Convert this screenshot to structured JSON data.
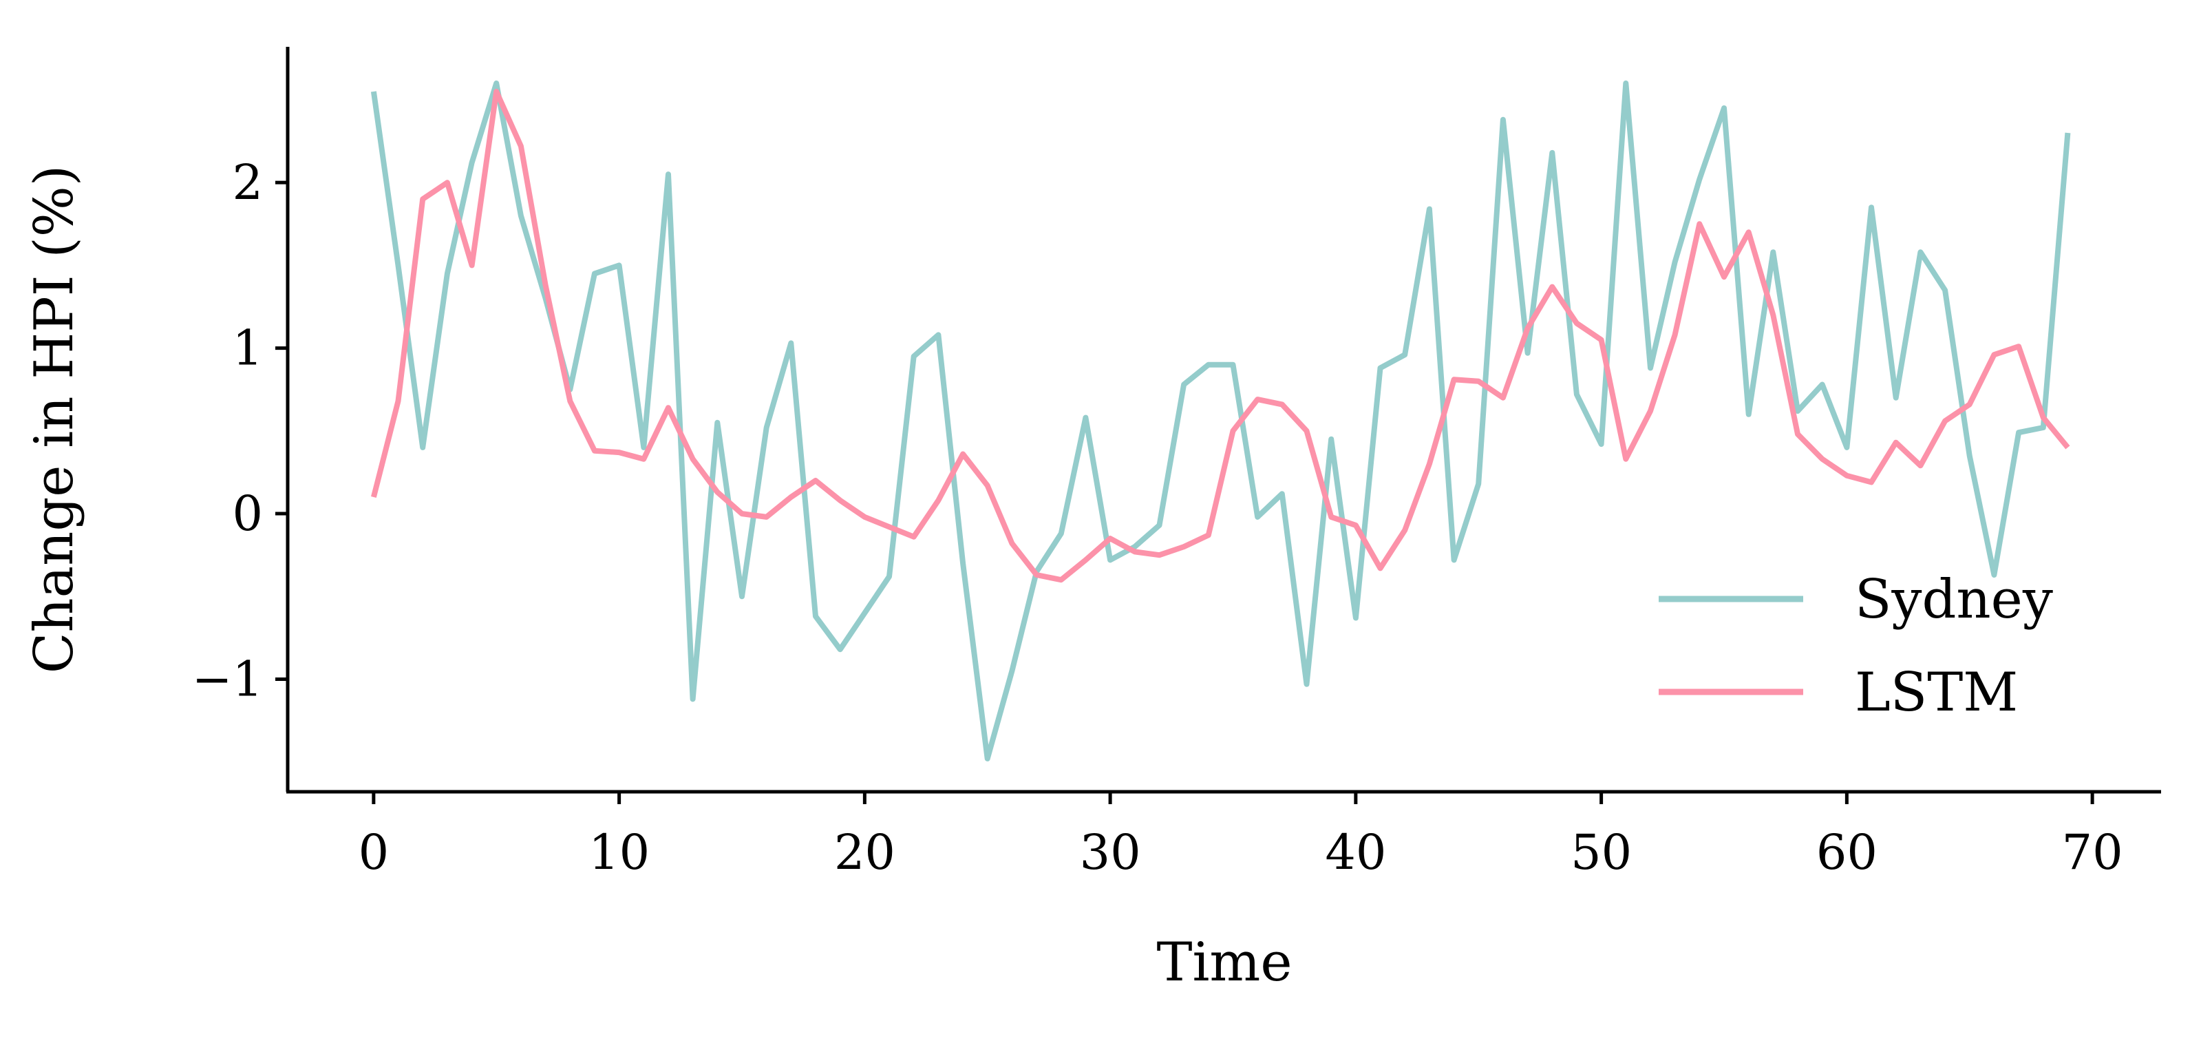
{
  "chart_data": {
    "type": "line",
    "title": "",
    "xlabel": "Time",
    "ylabel": "Change in HPI (%)",
    "xlim": [
      -3.5,
      72.8
    ],
    "ylim": [
      -1.68,
      2.82
    ],
    "xticks": [
      0,
      10,
      20,
      30,
      40,
      50,
      60,
      70
    ],
    "yticks": [
      -1,
      0,
      1,
      2
    ],
    "xtick_labels": [
      "0",
      "10",
      "20",
      "30",
      "40",
      "50",
      "60",
      "70"
    ],
    "ytick_labels": [
      "−1",
      "0",
      "1",
      "2"
    ],
    "grid": false,
    "legend_position": "lower-right",
    "series": [
      {
        "name": "Sydney",
        "color": "#94cccb",
        "x": [
          0,
          1,
          2,
          3,
          4,
          5,
          6,
          7,
          8,
          9,
          10,
          11,
          12,
          13,
          14,
          15,
          16,
          17,
          18,
          19,
          20,
          21,
          22,
          23,
          24,
          25,
          26,
          27,
          28,
          29,
          30,
          31,
          32,
          33,
          34,
          35,
          36,
          37,
          38,
          39,
          40,
          41,
          42,
          43,
          44,
          45,
          46,
          47,
          48,
          49,
          50,
          51,
          52,
          53,
          54,
          55,
          56,
          57,
          58,
          59,
          60,
          61,
          62,
          63,
          64,
          65,
          66,
          67,
          68,
          69
        ],
        "values": [
          2.55,
          1.5,
          0.4,
          1.45,
          2.12,
          2.6,
          1.8,
          1.3,
          0.75,
          1.45,
          1.5,
          0.4,
          2.05,
          -1.12,
          0.55,
          -0.5,
          0.52,
          1.03,
          -0.62,
          -0.82,
          -0.6,
          -0.38,
          0.95,
          1.08,
          -0.3,
          -1.48,
          -0.95,
          -0.35,
          -0.12,
          0.58,
          -0.28,
          -0.2,
          -0.07,
          0.78,
          0.9,
          0.9,
          -0.02,
          0.12,
          -1.03,
          0.45,
          -0.63,
          0.88,
          0.96,
          1.84,
          -0.28,
          0.18,
          2.38,
          0.97,
          2.18,
          0.72,
          0.42,
          2.6,
          0.88,
          1.52,
          2.02,
          2.45,
          0.6,
          1.58,
          0.62,
          0.78,
          0.4,
          1.85,
          0.7,
          1.58,
          1.35,
          0.35,
          -0.37,
          0.49,
          0.52,
          2.3
        ]
      },
      {
        "name": "LSTM",
        "color": "#fc92a9",
        "x": [
          0,
          1,
          2,
          3,
          4,
          5,
          6,
          7,
          8,
          9,
          10,
          11,
          12,
          13,
          14,
          15,
          16,
          17,
          18,
          19,
          20,
          21,
          22,
          23,
          24,
          25,
          26,
          27,
          28,
          29,
          30,
          31,
          32,
          33,
          34,
          35,
          36,
          37,
          38,
          39,
          40,
          41,
          42,
          43,
          44,
          45,
          46,
          47,
          48,
          49,
          50,
          51,
          52,
          53,
          54,
          55,
          56,
          57,
          58,
          59,
          60,
          61,
          62,
          63,
          64,
          65,
          66,
          67,
          68,
          69
        ],
        "values": [
          0.1,
          0.68,
          1.9,
          2.0,
          1.5,
          2.55,
          2.22,
          1.38,
          0.68,
          0.38,
          0.37,
          0.33,
          0.64,
          0.33,
          0.13,
          0.0,
          -0.02,
          0.1,
          0.2,
          0.08,
          -0.02,
          -0.08,
          -0.14,
          0.08,
          0.36,
          0.17,
          -0.18,
          -0.37,
          -0.4,
          -0.28,
          -0.15,
          -0.23,
          -0.25,
          -0.2,
          -0.13,
          0.5,
          0.69,
          0.66,
          0.5,
          -0.02,
          -0.07,
          -0.33,
          -0.1,
          0.3,
          0.81,
          0.8,
          0.7,
          1.12,
          1.37,
          1.15,
          1.05,
          0.33,
          0.62,
          1.08,
          1.75,
          1.43,
          1.7,
          1.2,
          0.48,
          0.33,
          0.23,
          0.19,
          0.43,
          0.29,
          0.56,
          0.66,
          0.96,
          1.01,
          0.58,
          0.4
        ]
      }
    ]
  }
}
